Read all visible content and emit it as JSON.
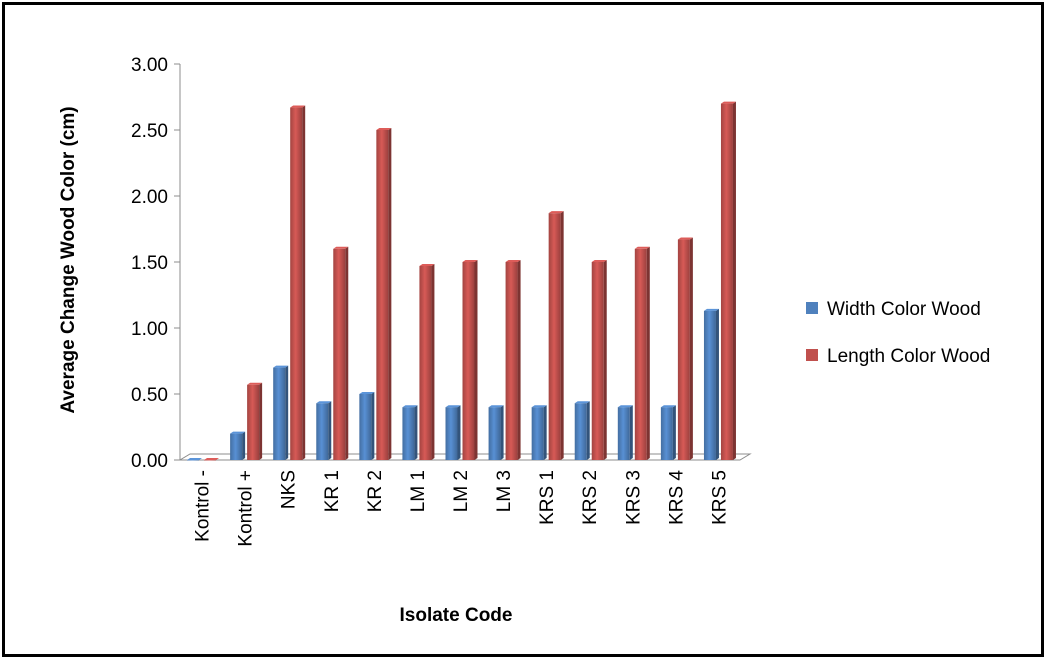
{
  "chart_data": {
    "type": "bar",
    "categories": [
      "Kontrol -",
      "Kontrol +",
      "NKS",
      "KR 1",
      "KR 2",
      "LM 1",
      "LM 2",
      "LM 3",
      "KRS 1",
      "KRS 2",
      "KRS 3",
      "KRS 4",
      "KRS 5"
    ],
    "series": [
      {
        "name": "Width Color Wood",
        "color": "#4f81bd",
        "values": [
          0.0,
          0.2,
          0.7,
          0.43,
          0.5,
          0.4,
          0.4,
          0.4,
          0.4,
          0.43,
          0.4,
          0.4,
          1.13
        ]
      },
      {
        "name": "Length Color Wood",
        "color": "#c0504d",
        "values": [
          0.0,
          0.57,
          2.67,
          1.6,
          2.5,
          1.47,
          1.5,
          1.5,
          1.87,
          1.5,
          1.6,
          1.67,
          2.7
        ]
      }
    ],
    "title": "",
    "xlabel": "Isolate Code",
    "ylabel": "Average Change Wood Color (cm)",
    "ylim": [
      0,
      3
    ],
    "yticks": [
      "0.00",
      "0.50",
      "1.00",
      "1.50",
      "2.00",
      "2.50",
      "3.00"
    ],
    "grid": false,
    "legend": "right"
  }
}
